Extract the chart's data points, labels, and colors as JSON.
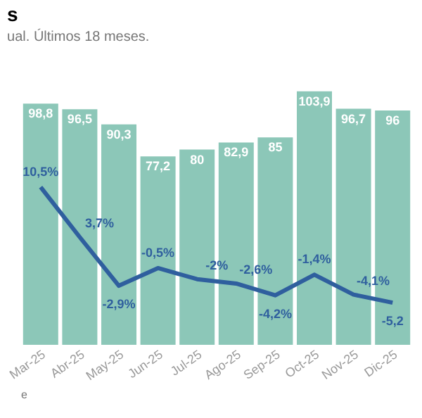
{
  "chart_data": {
    "type": "bar",
    "title": "s",
    "subtitle": "ual. Últimos 18 meses.",
    "annotations": [
      "e"
    ],
    "categories": [
      "Mar-25",
      "Abr-25",
      "May-25",
      "Jun-25",
      "Jul-25",
      "Ago-25",
      "Sep-25",
      "Oct-25",
      "Nov-25",
      "Dic-25"
    ],
    "series": [
      {
        "color": "#8cc7b8",
        "values": [
          98.8,
          96.5,
          90.3,
          77.2,
          80,
          82.9,
          85,
          103.9,
          96.7,
          96
        ],
        "value_labels": [
          "98,8",
          "96,5",
          "90,3",
          "77,2",
          "80",
          "82,9",
          "85",
          "103,9",
          "96,7",
          "96"
        ]
      },
      {
        "type": "line",
        "axis": "y2",
        "color": "#2f5f9e",
        "values": [
          10.5,
          3.7,
          -2.9,
          -0.5,
          -2,
          -2.6,
          -4.2,
          -1.4,
          -4.1,
          -5.2
        ],
        "value_labels": [
          "10,5%",
          "3,7%",
          "-2,9%",
          "-0,5%",
          "-2%",
          "-2,6%",
          "-4,2%",
          "-1,4%",
          "-4,1%",
          "-5,2"
        ]
      }
    ]
  }
}
